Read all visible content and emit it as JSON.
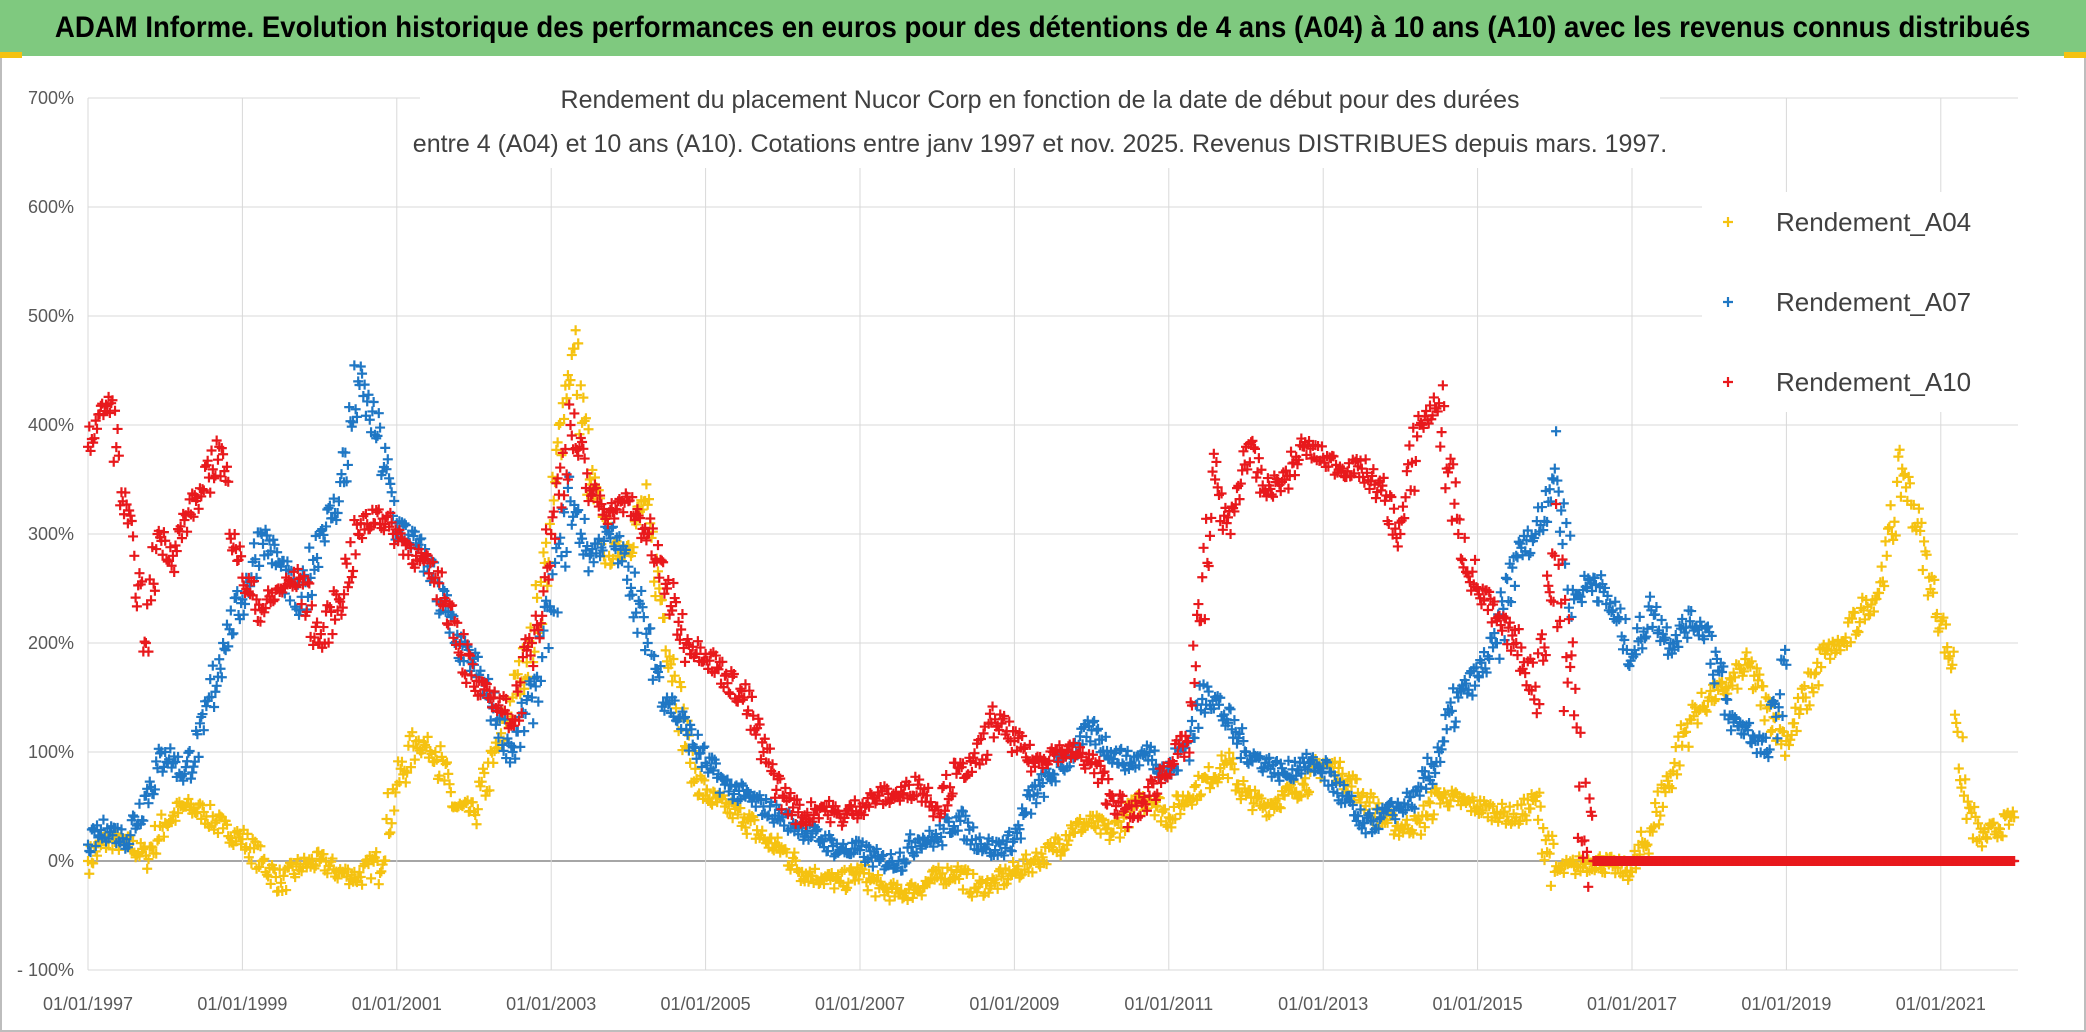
{
  "banner": {
    "title": "ADAM Informe. Evolution historique des performances en euros pour des détentions de 4 ans (A04) à 10 ans (A10) avec les revenus connus distribués"
  },
  "chart_data": {
    "type": "scatter",
    "title_line1": "Rendement du placement Nucor Corp en fonction de la date de début pour des durées",
    "title_line2": "entre 4 (A04) et 10 ans (A10). Cotations entre janv 1997 et nov. 2025. Revenus DISTRIBUES depuis mars. 1997.",
    "xlabel": "",
    "ylabel": "",
    "xlim": [
      1997.0,
      2022.0
    ],
    "ylim": [
      -100,
      700
    ],
    "x_ticks": [
      {
        "value": 1997,
        "label": "01/01/1997"
      },
      {
        "value": 1999,
        "label": "01/01/1999"
      },
      {
        "value": 2001,
        "label": "01/01/2001"
      },
      {
        "value": 2003,
        "label": "01/01/2003"
      },
      {
        "value": 2005,
        "label": "01/01/2005"
      },
      {
        "value": 2007,
        "label": "01/01/2007"
      },
      {
        "value": 2009,
        "label": "01/01/2009"
      },
      {
        "value": 2011,
        "label": "01/01/2011"
      },
      {
        "value": 2013,
        "label": "01/01/2013"
      },
      {
        "value": 2015,
        "label": "01/01/2015"
      },
      {
        "value": 2017,
        "label": "01/01/2017"
      },
      {
        "value": 2019,
        "label": "01/01/2019"
      },
      {
        "value": 2021,
        "label": "01/01/2021"
      }
    ],
    "y_ticks": [
      {
        "value": 700,
        "label": "700%"
      },
      {
        "value": 600,
        "label": "600%"
      },
      {
        "value": 500,
        "label": "500%"
      },
      {
        "value": 400,
        "label": "400%"
      },
      {
        "value": 300,
        "label": "300%"
      },
      {
        "value": 200,
        "label": "200%"
      },
      {
        "value": 100,
        "label": "100%"
      },
      {
        "value": 0,
        "label": "0%"
      },
      {
        "value": -100,
        "label": "- 100%"
      }
    ],
    "grid": true,
    "legend_position": "top-right",
    "series": [
      {
        "name": "Rendement_A04",
        "color": "#f5c211",
        "x": [
          1997.0,
          1997.25,
          1997.5,
          1997.75,
          1998.0,
          1998.25,
          1998.5,
          1998.75,
          1999.0,
          1999.25,
          1999.5,
          1999.75,
          2000.0,
          2000.25,
          2000.5,
          2000.75,
          2001.0,
          2001.25,
          2001.5,
          2001.75,
          2002.0,
          2002.25,
          2002.5,
          2002.75,
          2003.0,
          2003.15,
          2003.3,
          2003.5,
          2003.75,
          2004.0,
          2004.2,
          2004.4,
          2004.6,
          2004.8,
          2005.0,
          2005.25,
          2005.5,
          2005.75,
          2006.0,
          2006.25,
          2006.5,
          2006.75,
          2007.0,
          2007.25,
          2007.5,
          2007.75,
          2008.0,
          2008.25,
          2008.5,
          2008.75,
          2009.0,
          2009.25,
          2009.5,
          2009.75,
          2010.0,
          2010.25,
          2010.5,
          2010.75,
          2011.0,
          2011.25,
          2011.5,
          2011.75,
          2012.0,
          2012.25,
          2012.5,
          2012.75,
          2013.0,
          2013.25,
          2013.5,
          2013.75,
          2014.0,
          2014.25,
          2014.5,
          2014.75,
          2015.0,
          2015.25,
          2015.5,
          2015.75,
          2016.0,
          2016.25,
          2016.5,
          2016.75,
          2017.0,
          2017.25,
          2017.5,
          2017.75,
          2018.0,
          2018.25,
          2018.5,
          2018.75,
          2019.0,
          2019.25,
          2019.5,
          2019.75,
          2020.0,
          2020.15,
          2020.3,
          2020.5,
          2020.7,
          2020.85,
          2021.0,
          2021.15,
          2021.3,
          2021.5,
          2021.75,
          2021.95
        ],
        "y": [
          0,
          20,
          15,
          5,
          35,
          50,
          45,
          30,
          20,
          0,
          -20,
          -5,
          0,
          -10,
          -15,
          0,
          70,
          110,
          100,
          50,
          45,
          90,
          150,
          200,
          300,
          420,
          470,
          350,
          280,
          290,
          330,
          250,
          170,
          90,
          60,
          50,
          40,
          20,
          10,
          -10,
          -15,
          -20,
          -10,
          -25,
          -30,
          -25,
          -15,
          -10,
          -25,
          -20,
          -10,
          0,
          10,
          30,
          35,
          25,
          45,
          60,
          40,
          60,
          75,
          90,
          60,
          50,
          60,
          70,
          90,
          80,
          60,
          40,
          30,
          35,
          60,
          55,
          50,
          45,
          40,
          55,
          -10,
          -5,
          0,
          -5,
          -10,
          30,
          80,
          130,
          150,
          160,
          180,
          140,
          110,
          150,
          190,
          200,
          230,
          240,
          280,
          360,
          310,
          260,
          220,
          180,
          60,
          20,
          30,
          40
        ]
      },
      {
        "name": "Rendement_A07",
        "color": "#1f77c4",
        "x": [
          1997.0,
          1997.25,
          1997.5,
          1997.75,
          1998.0,
          1998.25,
          1998.5,
          1998.75,
          1999.0,
          1999.25,
          1999.5,
          1999.75,
          2000.0,
          2000.25,
          2000.5,
          2000.75,
          2001.0,
          2001.25,
          2001.5,
          2001.75,
          2002.0,
          2002.25,
          2002.5,
          2002.75,
          2003.0,
          2003.25,
          2003.5,
          2003.75,
          2004.0,
          2004.25,
          2004.5,
          2004.75,
          2005.0,
          2005.25,
          2005.5,
          2005.75,
          2006.0,
          2006.25,
          2006.5,
          2006.75,
          2007.0,
          2007.25,
          2007.5,
          2007.75,
          2008.0,
          2008.25,
          2008.5,
          2008.75,
          2009.0,
          2009.25,
          2009.5,
          2009.75,
          2010.0,
          2010.25,
          2010.5,
          2010.75,
          2011.0,
          2011.25,
          2011.5,
          2011.75,
          2012.0,
          2012.25,
          2012.5,
          2012.75,
          2013.0,
          2013.25,
          2013.5,
          2013.75,
          2014.0,
          2014.25,
          2014.5,
          2014.75,
          2015.0,
          2015.25,
          2015.5,
          2015.75,
          2016.0,
          2016.25,
          2016.5,
          2016.75,
          2017.0,
          2017.25,
          2017.5,
          2017.75,
          2018.0,
          2018.25,
          2018.5,
          2018.75,
          2019.0
        ],
        "y": [
          15,
          30,
          20,
          60,
          100,
          80,
          120,
          200,
          240,
          300,
          270,
          230,
          300,
          330,
          440,
          390,
          310,
          290,
          260,
          200,
          180,
          140,
          100,
          150,
          230,
          330,
          280,
          300,
          270,
          200,
          150,
          120,
          90,
          70,
          60,
          50,
          40,
          30,
          20,
          10,
          10,
          0,
          0,
          20,
          20,
          40,
          20,
          10,
          20,
          60,
          80,
          100,
          120,
          100,
          90,
          100,
          80,
          110,
          160,
          130,
          100,
          90,
          80,
          90,
          85,
          60,
          30,
          40,
          50,
          60,
          100,
          150,
          170,
          200,
          280,
          300,
          360,
          240,
          260,
          230,
          190,
          230,
          200,
          220,
          210,
          130,
          120,
          100,
          180
        ]
      },
      {
        "name": "Rendement_A10",
        "color": "#e8191c",
        "x": [
          1997.0,
          1997.15,
          1997.3,
          1997.45,
          1997.6,
          1997.75,
          1997.9,
          1998.1,
          1998.3,
          1998.5,
          1998.7,
          1998.9,
          1999.0,
          1999.25,
          1999.5,
          1999.75,
          2000.0,
          2000.25,
          2000.5,
          2000.75,
          2001.0,
          2001.25,
          2001.5,
          2001.75,
          2002.0,
          2002.25,
          2002.5,
          2002.75,
          2003.0,
          2003.25,
          2003.5,
          2003.75,
          2004.0,
          2004.25,
          2004.5,
          2004.75,
          2005.0,
          2005.25,
          2005.5,
          2005.75,
          2006.0,
          2006.25,
          2006.5,
          2006.75,
          2007.0,
          2007.25,
          2007.5,
          2007.75,
          2008.0,
          2008.25,
          2008.5,
          2008.75,
          2009.0,
          2009.25,
          2009.5,
          2009.75,
          2010.0,
          2010.25,
          2010.5,
          2010.75,
          2011.0,
          2011.25,
          2011.4,
          2011.6,
          2011.8,
          2012.0,
          2012.25,
          2012.5,
          2012.75,
          2013.0,
          2013.25,
          2013.5,
          2013.75,
          2014.0,
          2014.25,
          2014.5,
          2014.75,
          2015.0,
          2015.25,
          2015.5,
          2015.75,
          2016.0,
          2016.5,
          2017.0,
          2017.5,
          2018.0,
          2018.5,
          2019.0,
          2019.5,
          2020.0,
          2020.5,
          2021.0,
          2021.5,
          2021.95
        ],
        "y": [
          380,
          410,
          420,
          330,
          280,
          200,
          300,
          280,
          320,
          340,
          380,
          300,
          260,
          230,
          250,
          260,
          200,
          240,
          300,
          320,
          300,
          280,
          260,
          220,
          160,
          150,
          130,
          200,
          300,
          400,
          340,
          320,
          330,
          300,
          250,
          200,
          190,
          170,
          150,
          100,
          60,
          40,
          50,
          40,
          50,
          60,
          60,
          70,
          50,
          80,
          90,
          130,
          110,
          90,
          100,
          100,
          90,
          60,
          40,
          60,
          90,
          110,
          220,
          350,
          300,
          380,
          340,
          350,
          380,
          370,
          360,
          360,
          340,
          300,
          400,
          420,
          300,
          250,
          220,
          200,
          160,
          280,
          0,
          0,
          0,
          0,
          0,
          0,
          0,
          0,
          0,
          0,
          0,
          0
        ]
      }
    ]
  }
}
